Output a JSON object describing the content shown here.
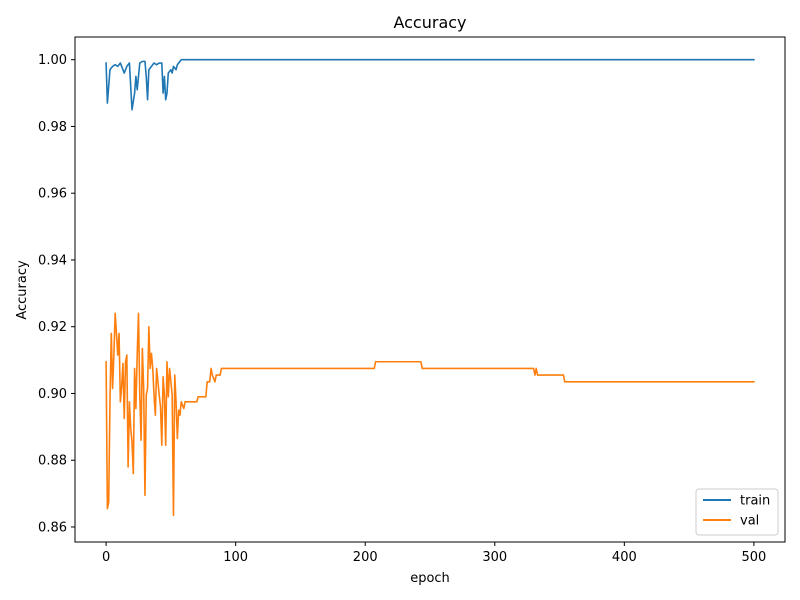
{
  "chart_data": {
    "type": "line",
    "title": "Accuracy",
    "xlabel": "epoch",
    "ylabel": "Accuracy",
    "xlim": [
      -24,
      524
    ],
    "ylim": [
      0.8555,
      1.0068
    ],
    "xticks": [
      0,
      100,
      200,
      300,
      400,
      500
    ],
    "yticks": [
      0.86,
      0.88,
      0.9,
      0.92,
      0.94,
      0.96,
      0.98,
      1.0
    ],
    "ytick_labels": [
      "0.86",
      "0.88",
      "0.90",
      "0.92",
      "0.94",
      "0.96",
      "0.98",
      "1.00"
    ],
    "grid": false,
    "legend_position": "lower-right",
    "series": [
      {
        "name": "train",
        "color": "#1f77b4",
        "points": [
          [
            0,
            0.999
          ],
          [
            1,
            0.987
          ],
          [
            3,
            0.997
          ],
          [
            5,
            0.998
          ],
          [
            7,
            0.9985
          ],
          [
            9,
            0.998
          ],
          [
            11,
            0.999
          ],
          [
            13,
            0.997
          ],
          [
            14,
            0.996
          ],
          [
            16,
            0.998
          ],
          [
            18,
            0.999
          ],
          [
            19,
            0.992
          ],
          [
            20,
            0.985
          ],
          [
            22,
            0.99
          ],
          [
            23,
            0.995
          ],
          [
            24,
            0.991
          ],
          [
            26,
            0.999
          ],
          [
            28,
            0.9995
          ],
          [
            30,
            0.9995
          ],
          [
            31,
            0.995
          ],
          [
            32,
            0.988
          ],
          [
            33,
            0.997
          ],
          [
            35,
            0.998
          ],
          [
            37,
            0.999
          ],
          [
            39,
            0.9985
          ],
          [
            41,
            0.999
          ],
          [
            43,
            0.999
          ],
          [
            44,
            0.99
          ],
          [
            45,
            0.995
          ],
          [
            46,
            0.988
          ],
          [
            47,
            0.99
          ],
          [
            48,
            0.996
          ],
          [
            50,
            0.997
          ],
          [
            51,
            0.996
          ],
          [
            52,
            0.998
          ],
          [
            54,
            0.997
          ],
          [
            55,
            0.9985
          ],
          [
            57,
            0.9995
          ],
          [
            58,
            1.0
          ],
          [
            500,
            1.0
          ]
        ]
      },
      {
        "name": "val",
        "color": "#ff7f0e",
        "points": [
          [
            0,
            0.9095
          ],
          [
            1,
            0.8655
          ],
          [
            2,
            0.8675
          ],
          [
            3,
            0.8975
          ],
          [
            4,
            0.918
          ],
          [
            5,
            0.9015
          ],
          [
            6,
            0.9115
          ],
          [
            7,
            0.924
          ],
          [
            8,
            0.918
          ],
          [
            9,
            0.9115
          ],
          [
            10,
            0.918
          ],
          [
            11,
            0.8975
          ],
          [
            12,
            0.902
          ],
          [
            13,
            0.909
          ],
          [
            14,
            0.8925
          ],
          [
            15,
            0.9095
          ],
          [
            16,
            0.9115
          ],
          [
            17,
            0.878
          ],
          [
            18,
            0.8975
          ],
          [
            19,
            0.8895
          ],
          [
            20,
            0.8855
          ],
          [
            21,
            0.876
          ],
          [
            22,
            0.9075
          ],
          [
            23,
            0.8955
          ],
          [
            24,
            0.9115
          ],
          [
            25,
            0.924
          ],
          [
            26,
            0.8995
          ],
          [
            27,
            0.886
          ],
          [
            28,
            0.9135
          ],
          [
            29,
            0.9015
          ],
          [
            30,
            0.8695
          ],
          [
            31,
            0.8995
          ],
          [
            32,
            0.9015
          ],
          [
            33,
            0.92
          ],
          [
            34,
            0.9075
          ],
          [
            35,
            0.912
          ],
          [
            36,
            0.9075
          ],
          [
            37,
            0.8995
          ],
          [
            38,
            0.8935
          ],
          [
            39,
            0.9075
          ],
          [
            40,
            0.9035
          ],
          [
            41,
            0.8995
          ],
          [
            42,
            0.896
          ],
          [
            43,
            0.8845
          ],
          [
            44,
            0.905
          ],
          [
            45,
            0.8995
          ],
          [
            46,
            0.8845
          ],
          [
            47,
            0.9095
          ],
          [
            48,
            0.899
          ],
          [
            49,
            0.9075
          ],
          [
            50,
            0.9035
          ],
          [
            51,
            0.8995
          ],
          [
            52,
            0.8635
          ],
          [
            53,
            0.9055
          ],
          [
            54,
            0.8975
          ],
          [
            55,
            0.8865
          ],
          [
            56,
            0.895
          ],
          [
            57,
            0.8935
          ],
          [
            58,
            0.8975
          ],
          [
            60,
            0.8955
          ],
          [
            61,
            0.8975
          ],
          [
            70,
            0.8975
          ],
          [
            71,
            0.899
          ],
          [
            77,
            0.899
          ],
          [
            78,
            0.9035
          ],
          [
            80,
            0.9035
          ],
          [
            81,
            0.9075
          ],
          [
            82,
            0.9055
          ],
          [
            84,
            0.9035
          ],
          [
            85,
            0.9055
          ],
          [
            88,
            0.9055
          ],
          [
            89,
            0.9075
          ],
          [
            207,
            0.9075
          ],
          [
            208,
            0.9095
          ],
          [
            243,
            0.9095
          ],
          [
            244,
            0.9075
          ],
          [
            330,
            0.9075
          ],
          [
            331,
            0.9055
          ],
          [
            332,
            0.9075
          ],
          [
            333,
            0.9055
          ],
          [
            353,
            0.9055
          ],
          [
            354,
            0.9035
          ],
          [
            500,
            0.9035
          ]
        ]
      }
    ]
  }
}
